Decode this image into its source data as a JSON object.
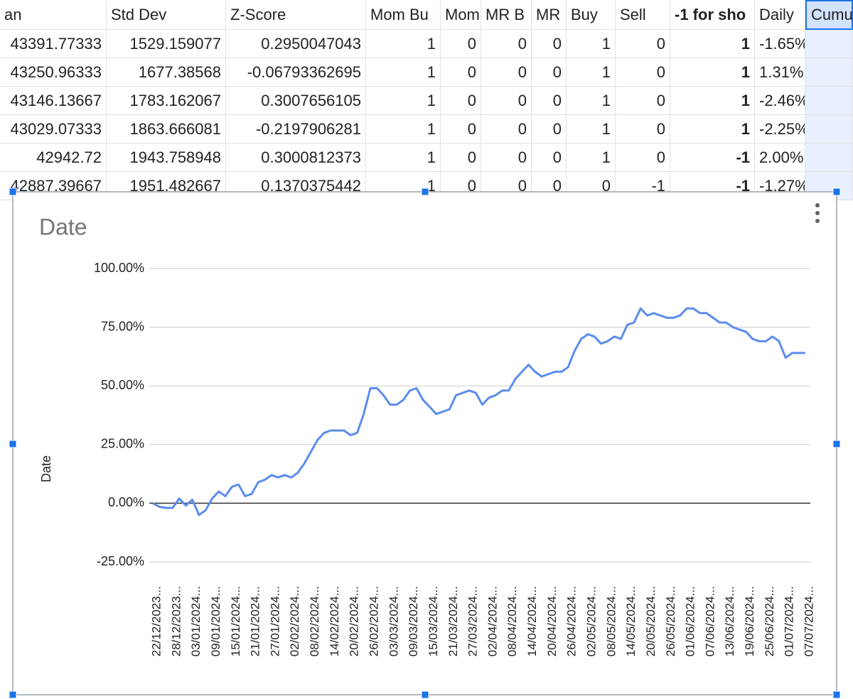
{
  "spreadsheet": {
    "headers": [
      "an",
      "Std Dev",
      "Z-Score",
      "Mom Bu",
      "Mom",
      "MR B",
      "MR",
      "Buy",
      "Sell",
      "-1 for sho",
      "Daily",
      "Cumu"
    ],
    "rows": [
      [
        "43391.77333",
        "1529.159077",
        "0.2950047043",
        "1",
        "0",
        "0",
        "0",
        "1",
        "0",
        "1",
        "-1.65%",
        ""
      ],
      [
        "43250.96333",
        "1677.38568",
        "-0.06793362695",
        "1",
        "0",
        "0",
        "0",
        "1",
        "0",
        "1",
        "1.31%",
        ""
      ],
      [
        "43146.13667",
        "1783.162067",
        "0.3007656105",
        "1",
        "0",
        "0",
        "0",
        "1",
        "0",
        "1",
        "-2.46%",
        ""
      ],
      [
        "43029.07333",
        "1863.666081",
        "-0.2197906281",
        "1",
        "0",
        "0",
        "0",
        "1",
        "0",
        "1",
        "-2.25%",
        ""
      ],
      [
        "42942.72",
        "1943.758948",
        "0.3000812373",
        "1",
        "0",
        "0",
        "0",
        "1",
        "0",
        "-1",
        "2.00%",
        ""
      ],
      [
        "42887.39667",
        "1951.482667",
        "0.1370375442",
        "1",
        "0",
        "0",
        "0",
        "0",
        "-1",
        "-1",
        "-1.27%",
        ""
      ]
    ]
  },
  "chart_data": {
    "type": "line",
    "title": "Date",
    "y_label": "Date",
    "color": "#5b8def",
    "grid": true,
    "categories": [
      "22/12/2023...",
      null,
      null,
      "28/12/2023...",
      null,
      null,
      "03/01/2024...",
      null,
      null,
      "09/01/2024...",
      null,
      null,
      "15/01/2024...",
      null,
      null,
      "21/01/2024...",
      null,
      null,
      "27/01/2024...",
      null,
      null,
      "02/02/2024...",
      null,
      null,
      "08/02/2024...",
      null,
      null,
      "14/02/2024...",
      null,
      null,
      "20/02/2024...",
      null,
      null,
      "26/02/2024...",
      null,
      null,
      "03/03/2024...",
      null,
      null,
      "09/03/2024...",
      null,
      null,
      "15/03/2024...",
      null,
      null,
      "21/03/2024...",
      null,
      null,
      "27/03/2024...",
      null,
      null,
      "02/04/2024...",
      null,
      null,
      "08/04/2024...",
      null,
      null,
      "14/04/2024...",
      null,
      null,
      "20/04/2024...",
      null,
      null,
      "26/04/2024...",
      null,
      null,
      "02/05/2024...",
      null,
      null,
      "08/05/2024...",
      null,
      null,
      "14/05/2024...",
      null,
      null,
      "20/05/2024...",
      null,
      null,
      "26/05/2024...",
      null,
      null,
      "01/06/2024...",
      null,
      null,
      "07/06/2024...",
      null,
      null,
      "13/06/2024...",
      null,
      null,
      "19/06/2024...",
      null,
      null,
      "25/06/2024...",
      null,
      null,
      "01/07/2024...",
      null,
      null,
      "07/07/2024..."
    ],
    "values": [
      0,
      -1.5,
      -2,
      -2,
      2,
      -1,
      1.5,
      -5,
      -3,
      2,
      5,
      3,
      7,
      8,
      3,
      4,
      9,
      10,
      12,
      11,
      12,
      11,
      13,
      17,
      22,
      27,
      30,
      31,
      31,
      31,
      29,
      30,
      38,
      49,
      49,
      46,
      42,
      42,
      44,
      48,
      49,
      44,
      41,
      38,
      39,
      40,
      46,
      47,
      48,
      47,
      42,
      45,
      46,
      48,
      48,
      53,
      56,
      59,
      56,
      54,
      55,
      56,
      56,
      58,
      65,
      70,
      72,
      71,
      68,
      69,
      71,
      70,
      76,
      77,
      83,
      80,
      81,
      80,
      79,
      79,
      80,
      83,
      83,
      81,
      81,
      79,
      77,
      77,
      75,
      74,
      73,
      70,
      69,
      69,
      71,
      69,
      62,
      64,
      64,
      64
    ],
    "ylim": [
      -25,
      100
    ],
    "yticks": [
      {
        "value": -25,
        "label": "-25.00%"
      },
      {
        "value": 0,
        "label": "0.00%"
      },
      {
        "value": 25,
        "label": "25.00%"
      },
      {
        "value": 50,
        "label": "50.00%"
      },
      {
        "value": 75,
        "label": "75.00%"
      },
      {
        "value": 100,
        "label": "100.00%"
      }
    ]
  }
}
